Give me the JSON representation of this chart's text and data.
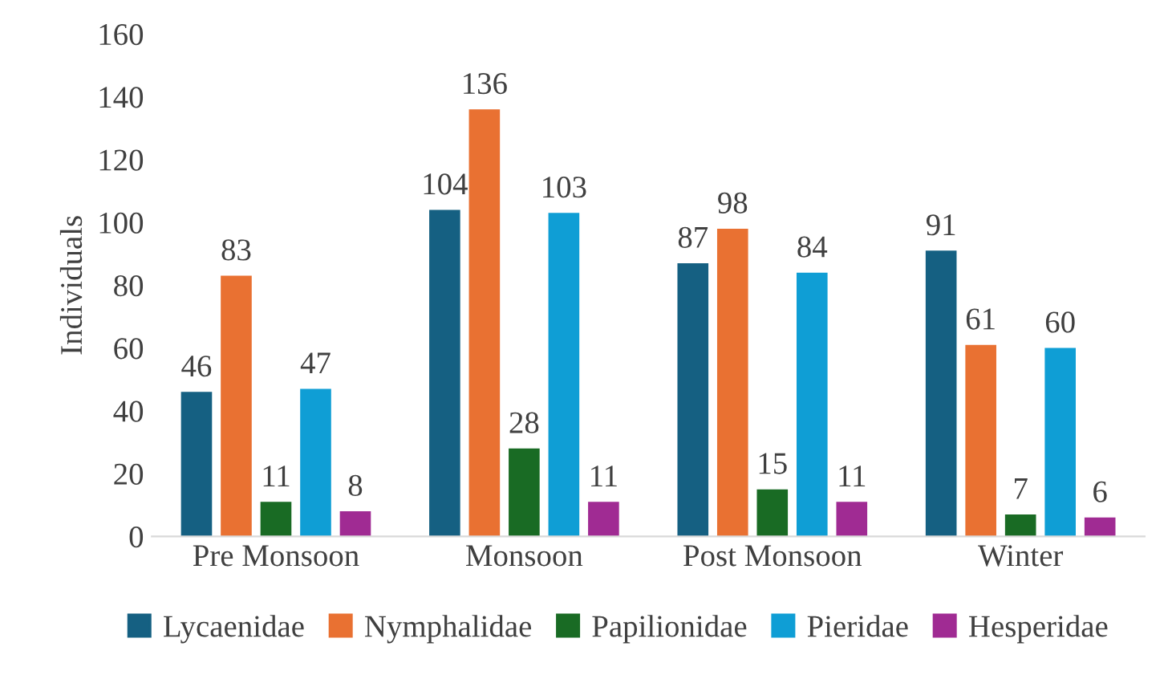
{
  "chart_data": {
    "type": "bar",
    "ylabel": "Individuals",
    "categories": [
      "Pre Monsoon",
      "Monsoon",
      "Post Monsoon",
      "Winter"
    ],
    "series": [
      {
        "name": "Lycaenidae",
        "color": "#156082",
        "values": [
          46,
          104,
          87,
          91
        ]
      },
      {
        "name": "Nymphalidae",
        "color": "#e97132",
        "values": [
          83,
          136,
          98,
          61
        ]
      },
      {
        "name": "Papilionidae",
        "color": "#196b24",
        "values": [
          11,
          28,
          15,
          7
        ]
      },
      {
        "name": "Pieridae",
        "color": "#0f9ed5",
        "values": [
          47,
          103,
          84,
          60
        ]
      },
      {
        "name": "Hesperidae",
        "color": "#a02b93",
        "values": [
          8,
          11,
          11,
          6
        ]
      }
    ],
    "ylim": [
      0,
      160
    ],
    "yticks": [
      0,
      20,
      40,
      60,
      80,
      100,
      120,
      140,
      160
    ],
    "grid": false,
    "legend": "bottom",
    "data_labels": true
  }
}
